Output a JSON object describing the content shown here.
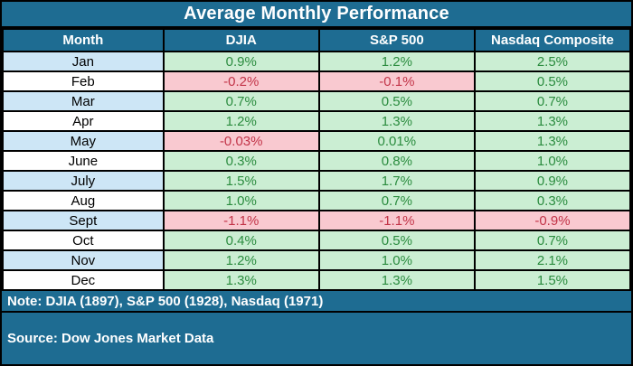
{
  "title": "Average Monthly Performance",
  "columns": [
    "Month",
    "DJIA",
    "S&P 500",
    "Nasdaq Composite"
  ],
  "rows": [
    {
      "month": "Jan",
      "values": [
        "0.9%",
        "1.2%",
        "2.5%"
      ]
    },
    {
      "month": "Feb",
      "values": [
        "-0.2%",
        "-0.1%",
        "0.5%"
      ]
    },
    {
      "month": "Mar",
      "values": [
        "0.7%",
        "0.5%",
        "0.7%"
      ]
    },
    {
      "month": "Apr",
      "values": [
        "1.2%",
        "1.3%",
        "1.3%"
      ]
    },
    {
      "month": "May",
      "values": [
        "-0.03%",
        "0.01%",
        "1.3%"
      ]
    },
    {
      "month": "June",
      "values": [
        "0.3%",
        "0.8%",
        "1.0%"
      ]
    },
    {
      "month": "July",
      "values": [
        "1.5%",
        "1.7%",
        "0.9%"
      ]
    },
    {
      "month": "Aug",
      "values": [
        "1.0%",
        "0.7%",
        "0.3%"
      ]
    },
    {
      "month": "Sept",
      "values": [
        "-1.1%",
        "-1.1%",
        "-0.9%"
      ]
    },
    {
      "month": "Oct",
      "values": [
        "0.4%",
        "0.5%",
        "0.7%"
      ]
    },
    {
      "month": "Nov",
      "values": [
        "1.2%",
        "1.0%",
        "2.1%"
      ]
    },
    {
      "month": "Dec",
      "values": [
        "1.3%",
        "1.3%",
        "1.5%"
      ]
    }
  ],
  "note": "Note: DJIA (1897), S&P 500 (1928), Nasdaq (1971)",
  "source": "Source: Dow Jones Market Data",
  "colors": {
    "header_bg": "#1E6C92",
    "month_highlight": "#CDE6F6",
    "positive_bg": "#CBEED3",
    "positive_text": "#2B8C3F",
    "negative_bg": "#F9C9D0",
    "negative_text": "#C23448",
    "border": "#000000",
    "header_text": "#FFFFFF"
  },
  "chart_data": {
    "type": "table",
    "title": "Average Monthly Performance",
    "categories": [
      "Jan",
      "Feb",
      "Mar",
      "Apr",
      "May",
      "June",
      "July",
      "Aug",
      "Sept",
      "Oct",
      "Nov",
      "Dec"
    ],
    "series": [
      {
        "name": "DJIA",
        "values": [
          0.9,
          -0.2,
          0.7,
          1.2,
          -0.03,
          0.3,
          1.5,
          1.0,
          -1.1,
          0.4,
          1.2,
          1.3
        ]
      },
      {
        "name": "S&P 500",
        "values": [
          1.2,
          -0.1,
          0.5,
          1.3,
          0.01,
          0.8,
          1.7,
          0.7,
          -1.1,
          0.5,
          1.0,
          1.3
        ]
      },
      {
        "name": "Nasdaq Composite",
        "values": [
          2.5,
          0.5,
          0.7,
          1.3,
          1.3,
          1.0,
          0.9,
          0.3,
          -0.9,
          0.7,
          2.1,
          1.5
        ]
      }
    ],
    "unit": "%",
    "annotations": [
      "Note: DJIA (1897), S&P 500 (1928), Nasdaq (1971)",
      "Source: Dow Jones Market Data"
    ]
  }
}
